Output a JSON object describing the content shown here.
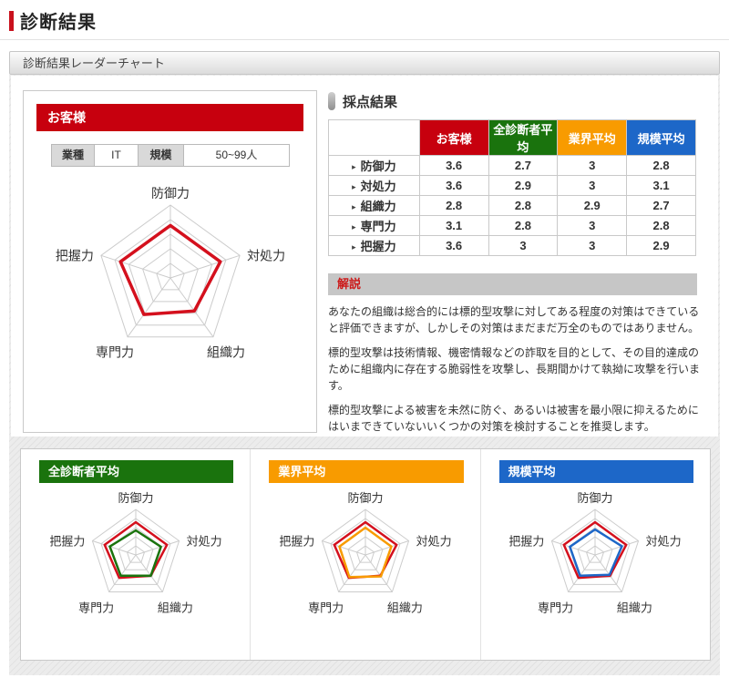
{
  "page": {
    "title": "診断結果",
    "section_title": "診断結果レーダーチャート"
  },
  "icons": {
    "heading_bullet": "vertical-pill",
    "row_marker": "▸"
  },
  "customer_panel": {
    "title": "お客様",
    "industry_label": "業種",
    "industry_value": "IT",
    "scale_label": "規模",
    "scale_value": "50~99人"
  },
  "score_section": {
    "title": "採点結果",
    "table": {
      "columns": [
        "お客様",
        "全診断者平均",
        "業界平均",
        "規模平均"
      ],
      "column_colors": [
        "#c7000e",
        "#1a730d",
        "#f89b00",
        "#1d67c8"
      ],
      "rows": [
        {
          "label": "防御力",
          "values": [
            "3.6",
            "2.7",
            "3",
            "2.8"
          ]
        },
        {
          "label": "対処力",
          "values": [
            "3.6",
            "2.9",
            "3",
            "3.1"
          ]
        },
        {
          "label": "組織力",
          "values": [
            "2.8",
            "2.8",
            "2.9",
            "2.7"
          ]
        },
        {
          "label": "専門力",
          "values": [
            "3.1",
            "2.8",
            "3",
            "2.8"
          ]
        },
        {
          "label": "把握力",
          "values": [
            "3.6",
            "3",
            "3",
            "2.9"
          ]
        }
      ]
    }
  },
  "commentary": {
    "title": "解説",
    "paragraphs": [
      "あなたの組織は総合的には標的型攻撃に対してある程度の対策はできていると評価できますが、しかしその対策はまだまだ万全のものではありません。",
      "標的型攻撃は技術情報、機密情報などの詐取を目的として、その目的達成のために組織内に存在する脆弱性を攻撃し、長期間かけて執拗に攻撃を行います。",
      "標的型攻撃による被害を未然に防ぐ、あるいは被害を最小限に抑えるためにはいまできていないいくつかの対策を検討することを推奨します。"
    ]
  },
  "chart_data": [
    {
      "type": "radar",
      "title": "お客様",
      "accent": "#c7000e",
      "axes": [
        "防御力",
        "対処力",
        "組織力",
        "専門力",
        "把握力"
      ],
      "max": 5,
      "rings": 5,
      "grid_color": "#cccccc",
      "series": [
        {
          "name": "お客様",
          "color": "#d4101d",
          "values": [
            3.6,
            3.6,
            2.8,
            3.1,
            3.6
          ]
        }
      ]
    },
    {
      "type": "radar",
      "title": "全診断者平均",
      "accent": "#1a730d",
      "axes": [
        "防御力",
        "対処力",
        "組織力",
        "専門力",
        "把握力"
      ],
      "max": 5,
      "rings": 5,
      "grid_color": "#cccccc",
      "series": [
        {
          "name": "お客様",
          "color": "#d4101d",
          "values": [
            3.6,
            3.6,
            2.8,
            3.1,
            3.6
          ]
        },
        {
          "name": "全診断者平均",
          "color": "#1a730d",
          "values": [
            2.7,
            2.9,
            2.8,
            2.8,
            3
          ]
        }
      ]
    },
    {
      "type": "radar",
      "title": "業界平均",
      "accent": "#f89b00",
      "axes": [
        "防御力",
        "対処力",
        "組織力",
        "専門力",
        "把握力"
      ],
      "max": 5,
      "rings": 5,
      "grid_color": "#cccccc",
      "series": [
        {
          "name": "お客様",
          "color": "#d4101d",
          "values": [
            3.6,
            3.6,
            2.8,
            3.1,
            3.6
          ]
        },
        {
          "name": "業界平均",
          "color": "#f89b00",
          "values": [
            3,
            3,
            2.9,
            3,
            3
          ]
        }
      ]
    },
    {
      "type": "radar",
      "title": "規模平均",
      "accent": "#1d67c8",
      "axes": [
        "防御力",
        "対処力",
        "組織力",
        "専門力",
        "把握力"
      ],
      "max": 5,
      "rings": 5,
      "grid_color": "#cccccc",
      "series": [
        {
          "name": "お客様",
          "color": "#d4101d",
          "values": [
            3.6,
            3.6,
            2.8,
            3.1,
            3.6
          ]
        },
        {
          "name": "規模平均",
          "color": "#1d67c8",
          "values": [
            2.8,
            3.1,
            2.7,
            2.8,
            2.9
          ]
        }
      ]
    }
  ]
}
